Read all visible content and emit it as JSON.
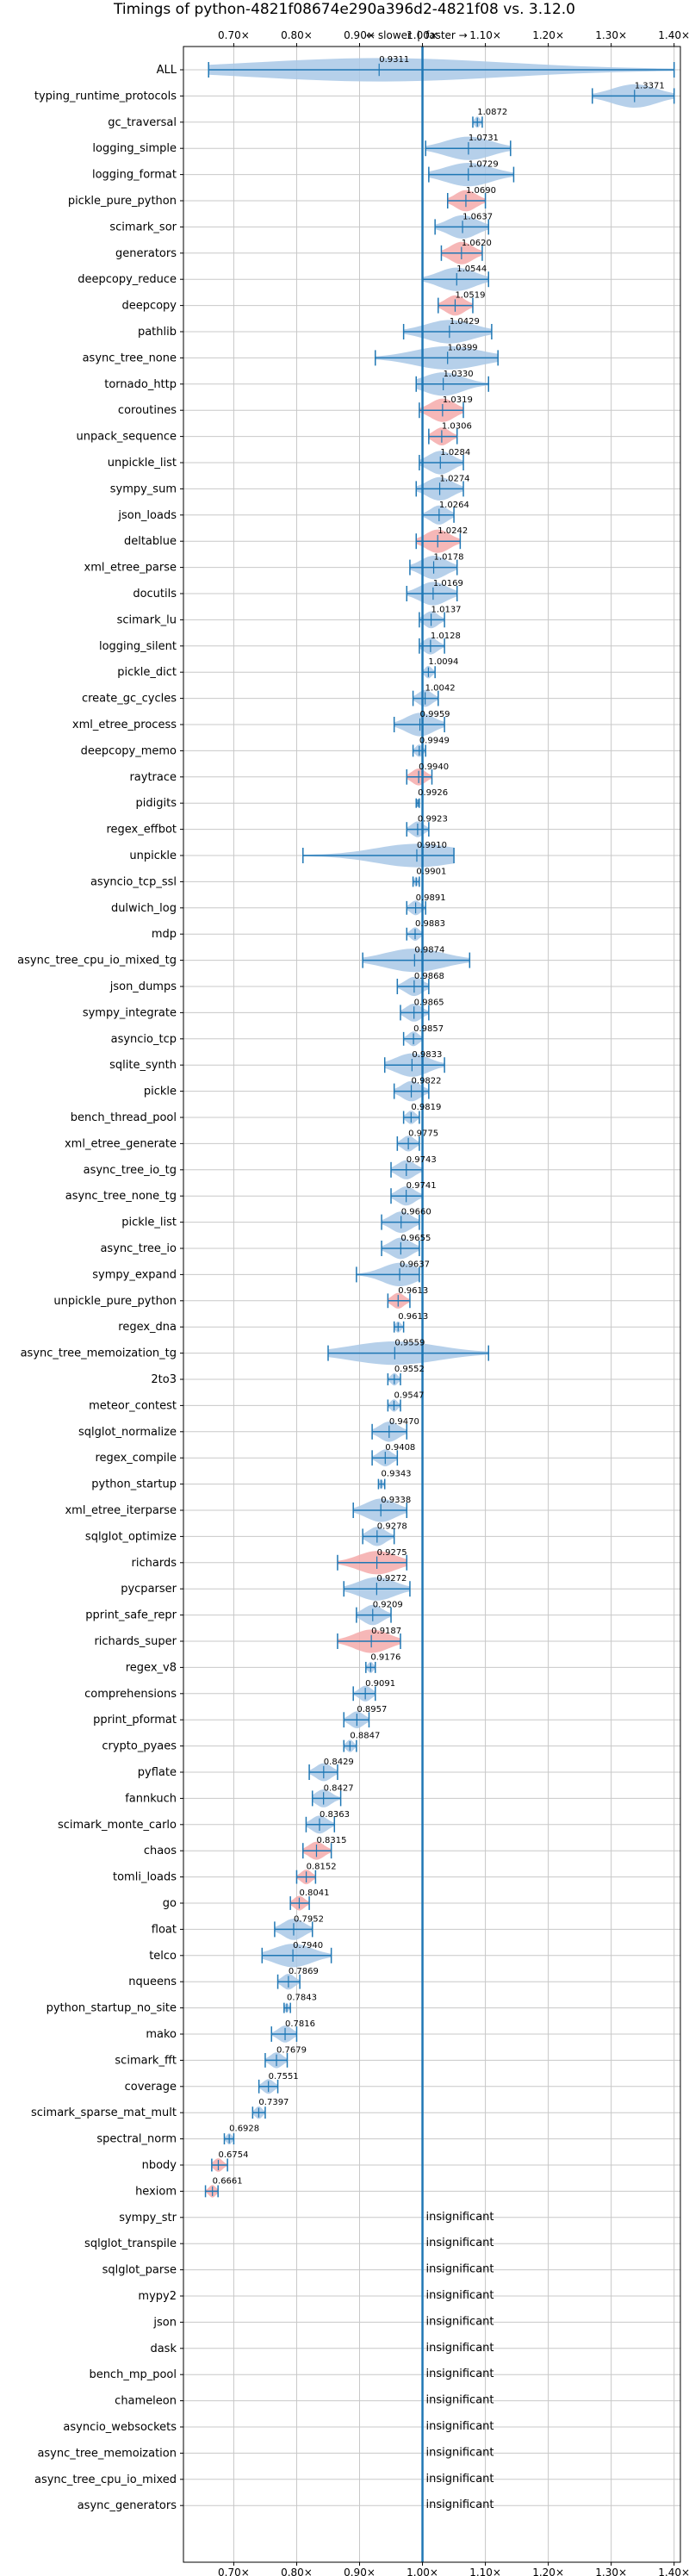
{
  "chart_data": {
    "type": "violin",
    "title": "Timings of python-4821f08674e290a396d2-4821f08 vs. 3.12.0",
    "direction_labels": {
      "slower": "← slower",
      "separator": "|",
      "faster": "faster →"
    },
    "xlim": [
      0.62,
      1.41
    ],
    "ticks": [
      0.7,
      0.8,
      0.9,
      1.0,
      1.1,
      1.2,
      1.3,
      1.4
    ],
    "tick_labels": [
      "0.70×",
      "0.80×",
      "0.90×",
      "1.00×",
      "1.10×",
      "1.20×",
      "1.30×",
      "1.40×"
    ],
    "reference_value": 1.0,
    "grid": true,
    "colors": {
      "normal": "#a9c8e6",
      "highlight": "#f4aaaa",
      "line": "#1f77b4",
      "grid": "#c8c8c8"
    },
    "rows": [
      {
        "name": "ALL",
        "value": 0.9311,
        "label": "0.9311",
        "lo": 0.66,
        "hi": 1.4,
        "hl": false
      },
      {
        "name": "typing_runtime_protocols",
        "value": 1.3371,
        "label": "1.3371",
        "lo": 1.27,
        "hi": 1.4,
        "hl": false
      },
      {
        "name": "gc_traversal",
        "value": 1.0872,
        "label": "1.0872",
        "lo": 1.08,
        "hi": 1.095,
        "hl": false
      },
      {
        "name": "logging_simple",
        "value": 1.0731,
        "label": "1.0731",
        "lo": 1.005,
        "hi": 1.14,
        "hl": false
      },
      {
        "name": "logging_format",
        "value": 1.0729,
        "label": "1.0729",
        "lo": 1.01,
        "hi": 1.145,
        "hl": false
      },
      {
        "name": "pickle_pure_python",
        "value": 1.069,
        "label": "1.0690",
        "lo": 1.04,
        "hi": 1.1,
        "hl": true
      },
      {
        "name": "scimark_sor",
        "value": 1.0637,
        "label": "1.0637",
        "lo": 1.02,
        "hi": 1.105,
        "hl": false
      },
      {
        "name": "generators",
        "value": 1.062,
        "label": "1.0620",
        "lo": 1.03,
        "hi": 1.095,
        "hl": true
      },
      {
        "name": "deepcopy_reduce",
        "value": 1.0544,
        "label": "1.0544",
        "lo": 1.0,
        "hi": 1.105,
        "hl": false
      },
      {
        "name": "deepcopy",
        "value": 1.0519,
        "label": "1.0519",
        "lo": 1.025,
        "hi": 1.08,
        "hl": true
      },
      {
        "name": "pathlib",
        "value": 1.0429,
        "label": "1.0429",
        "lo": 0.97,
        "hi": 1.11,
        "hl": false
      },
      {
        "name": "async_tree_none",
        "value": 1.0399,
        "label": "1.0399",
        "lo": 0.925,
        "hi": 1.12,
        "hl": false
      },
      {
        "name": "tornado_http",
        "value": 1.033,
        "label": "1.0330",
        "lo": 0.99,
        "hi": 1.105,
        "hl": false
      },
      {
        "name": "coroutines",
        "value": 1.0319,
        "label": "1.0319",
        "lo": 0.995,
        "hi": 1.065,
        "hl": true
      },
      {
        "name": "unpack_sequence",
        "value": 1.0306,
        "label": "1.0306",
        "lo": 1.01,
        "hi": 1.055,
        "hl": true
      },
      {
        "name": "unpickle_list",
        "value": 1.0284,
        "label": "1.0284",
        "lo": 0.995,
        "hi": 1.065,
        "hl": false
      },
      {
        "name": "sympy_sum",
        "value": 1.0274,
        "label": "1.0274",
        "lo": 0.99,
        "hi": 1.065,
        "hl": false
      },
      {
        "name": "json_loads",
        "value": 1.0264,
        "label": "1.0264",
        "lo": 1.0,
        "hi": 1.05,
        "hl": false
      },
      {
        "name": "deltablue",
        "value": 1.0242,
        "label": "1.0242",
        "lo": 0.99,
        "hi": 1.06,
        "hl": true
      },
      {
        "name": "xml_etree_parse",
        "value": 1.0178,
        "label": "1.0178",
        "lo": 0.98,
        "hi": 1.055,
        "hl": false
      },
      {
        "name": "docutils",
        "value": 1.0169,
        "label": "1.0169",
        "lo": 0.975,
        "hi": 1.055,
        "hl": false
      },
      {
        "name": "scimark_lu",
        "value": 1.0137,
        "label": "1.0137",
        "lo": 0.995,
        "hi": 1.035,
        "hl": false
      },
      {
        "name": "logging_silent",
        "value": 1.0128,
        "label": "1.0128",
        "lo": 0.995,
        "hi": 1.035,
        "hl": false
      },
      {
        "name": "pickle_dict",
        "value": 1.0094,
        "label": "1.0094",
        "lo": 1.0,
        "hi": 1.02,
        "hl": false
      },
      {
        "name": "create_gc_cycles",
        "value": 1.0042,
        "label": "1.0042",
        "lo": 0.985,
        "hi": 1.025,
        "hl": false
      },
      {
        "name": "xml_etree_process",
        "value": 0.9959,
        "label": "0.9959",
        "lo": 0.955,
        "hi": 1.035,
        "hl": false
      },
      {
        "name": "deepcopy_memo",
        "value": 0.9949,
        "label": "0.9949",
        "lo": 0.985,
        "hi": 1.005,
        "hl": false
      },
      {
        "name": "raytrace",
        "value": 0.994,
        "label": "0.9940",
        "lo": 0.975,
        "hi": 1.015,
        "hl": true
      },
      {
        "name": "pidigits",
        "value": 0.9926,
        "label": "0.9926",
        "lo": 0.99,
        "hi": 0.995,
        "hl": false
      },
      {
        "name": "regex_effbot",
        "value": 0.9923,
        "label": "0.9923",
        "lo": 0.975,
        "hi": 1.01,
        "hl": false
      },
      {
        "name": "unpickle",
        "value": 0.991,
        "label": "0.9910",
        "lo": 0.81,
        "hi": 1.05,
        "hl": false
      },
      {
        "name": "asyncio_tcp_ssl",
        "value": 0.9901,
        "label": "0.9901",
        "lo": 0.985,
        "hi": 0.995,
        "hl": false
      },
      {
        "name": "dulwich_log",
        "value": 0.9891,
        "label": "0.9891",
        "lo": 0.975,
        "hi": 1.005,
        "hl": false
      },
      {
        "name": "mdp",
        "value": 0.9883,
        "label": "0.9883",
        "lo": 0.975,
        "hi": 1.0,
        "hl": false
      },
      {
        "name": "async_tree_cpu_io_mixed_tg",
        "value": 0.9874,
        "label": "0.9874",
        "lo": 0.905,
        "hi": 1.075,
        "hl": false
      },
      {
        "name": "json_dumps",
        "value": 0.9868,
        "label": "0.9868",
        "lo": 0.96,
        "hi": 1.01,
        "hl": false
      },
      {
        "name": "sympy_integrate",
        "value": 0.9865,
        "label": "0.9865",
        "lo": 0.965,
        "hi": 1.01,
        "hl": false
      },
      {
        "name": "asyncio_tcp",
        "value": 0.9857,
        "label": "0.9857",
        "lo": 0.97,
        "hi": 1.0,
        "hl": false
      },
      {
        "name": "sqlite_synth",
        "value": 0.9833,
        "label": "0.9833",
        "lo": 0.94,
        "hi": 1.035,
        "hl": false
      },
      {
        "name": "pickle",
        "value": 0.9822,
        "label": "0.9822",
        "lo": 0.955,
        "hi": 1.01,
        "hl": false
      },
      {
        "name": "bench_thread_pool",
        "value": 0.9819,
        "label": "0.9819",
        "lo": 0.97,
        "hi": 0.995,
        "hl": false
      },
      {
        "name": "xml_etree_generate",
        "value": 0.9775,
        "label": "0.9775",
        "lo": 0.96,
        "hi": 0.995,
        "hl": false
      },
      {
        "name": "async_tree_io_tg",
        "value": 0.9743,
        "label": "0.9743",
        "lo": 0.95,
        "hi": 1.0,
        "hl": false
      },
      {
        "name": "async_tree_none_tg",
        "value": 0.9741,
        "label": "0.9741",
        "lo": 0.95,
        "hi": 1.0,
        "hl": false
      },
      {
        "name": "pickle_list",
        "value": 0.966,
        "label": "0.9660",
        "lo": 0.935,
        "hi": 0.995,
        "hl": false
      },
      {
        "name": "async_tree_io",
        "value": 0.9655,
        "label": "0.9655",
        "lo": 0.935,
        "hi": 0.995,
        "hl": false
      },
      {
        "name": "sympy_expand",
        "value": 0.9637,
        "label": "0.9637",
        "lo": 0.895,
        "hi": 0.995,
        "hl": false
      },
      {
        "name": "unpickle_pure_python",
        "value": 0.9613,
        "label": "0.9613",
        "lo": 0.945,
        "hi": 0.98,
        "hl": true
      },
      {
        "name": "regex_dna",
        "value": 0.9613,
        "label": "0.9613",
        "lo": 0.955,
        "hi": 0.97,
        "hl": false
      },
      {
        "name": "async_tree_memoization_tg",
        "value": 0.9559,
        "label": "0.9559",
        "lo": 0.85,
        "hi": 1.105,
        "hl": false
      },
      {
        "name": "2to3",
        "value": 0.9552,
        "label": "0.9552",
        "lo": 0.945,
        "hi": 0.965,
        "hl": false
      },
      {
        "name": "meteor_contest",
        "value": 0.9547,
        "label": "0.9547",
        "lo": 0.945,
        "hi": 0.965,
        "hl": false
      },
      {
        "name": "sqlglot_normalize",
        "value": 0.947,
        "label": "0.9470",
        "lo": 0.92,
        "hi": 0.975,
        "hl": false
      },
      {
        "name": "regex_compile",
        "value": 0.9408,
        "label": "0.9408",
        "lo": 0.92,
        "hi": 0.96,
        "hl": false
      },
      {
        "name": "python_startup",
        "value": 0.9343,
        "label": "0.9343",
        "lo": 0.93,
        "hi": 0.94,
        "hl": false
      },
      {
        "name": "xml_etree_iterparse",
        "value": 0.9338,
        "label": "0.9338",
        "lo": 0.89,
        "hi": 0.975,
        "hl": false
      },
      {
        "name": "sqlglot_optimize",
        "value": 0.9278,
        "label": "0.9278",
        "lo": 0.905,
        "hi": 0.955,
        "hl": false
      },
      {
        "name": "richards",
        "value": 0.9275,
        "label": "0.9275",
        "lo": 0.865,
        "hi": 0.975,
        "hl": true
      },
      {
        "name": "pycparser",
        "value": 0.9272,
        "label": "0.9272",
        "lo": 0.875,
        "hi": 0.98,
        "hl": false
      },
      {
        "name": "pprint_safe_repr",
        "value": 0.9209,
        "label": "0.9209",
        "lo": 0.895,
        "hi": 0.95,
        "hl": false
      },
      {
        "name": "richards_super",
        "value": 0.9187,
        "label": "0.9187",
        "lo": 0.865,
        "hi": 0.965,
        "hl": true
      },
      {
        "name": "regex_v8",
        "value": 0.9176,
        "label": "0.9176",
        "lo": 0.91,
        "hi": 0.925,
        "hl": false
      },
      {
        "name": "comprehensions",
        "value": 0.9091,
        "label": "0.9091",
        "lo": 0.89,
        "hi": 0.925,
        "hl": false
      },
      {
        "name": "pprint_pformat",
        "value": 0.8957,
        "label": "0.8957",
        "lo": 0.875,
        "hi": 0.915,
        "hl": false
      },
      {
        "name": "crypto_pyaes",
        "value": 0.8847,
        "label": "0.8847",
        "lo": 0.875,
        "hi": 0.895,
        "hl": false
      },
      {
        "name": "pyflate",
        "value": 0.8429,
        "label": "0.8429",
        "lo": 0.82,
        "hi": 0.865,
        "hl": false
      },
      {
        "name": "fannkuch",
        "value": 0.8427,
        "label": "0.8427",
        "lo": 0.825,
        "hi": 0.87,
        "hl": false
      },
      {
        "name": "scimark_monte_carlo",
        "value": 0.8363,
        "label": "0.8363",
        "lo": 0.815,
        "hi": 0.86,
        "hl": false
      },
      {
        "name": "chaos",
        "value": 0.8315,
        "label": "0.8315",
        "lo": 0.81,
        "hi": 0.855,
        "hl": true
      },
      {
        "name": "tomli_loads",
        "value": 0.8152,
        "label": "0.8152",
        "lo": 0.8,
        "hi": 0.83,
        "hl": true
      },
      {
        "name": "go",
        "value": 0.8041,
        "label": "0.8041",
        "lo": 0.79,
        "hi": 0.82,
        "hl": true
      },
      {
        "name": "float",
        "value": 0.7952,
        "label": "0.7952",
        "lo": 0.765,
        "hi": 0.825,
        "hl": false
      },
      {
        "name": "telco",
        "value": 0.794,
        "label": "0.7940",
        "lo": 0.745,
        "hi": 0.855,
        "hl": false
      },
      {
        "name": "nqueens",
        "value": 0.7869,
        "label": "0.7869",
        "lo": 0.77,
        "hi": 0.805,
        "hl": false
      },
      {
        "name": "python_startup_no_site",
        "value": 0.7843,
        "label": "0.7843",
        "lo": 0.78,
        "hi": 0.79,
        "hl": false
      },
      {
        "name": "mako",
        "value": 0.7816,
        "label": "0.7816",
        "lo": 0.76,
        "hi": 0.8,
        "hl": false
      },
      {
        "name": "scimark_fft",
        "value": 0.7679,
        "label": "0.7679",
        "lo": 0.75,
        "hi": 0.785,
        "hl": false
      },
      {
        "name": "coverage",
        "value": 0.7551,
        "label": "0.7551",
        "lo": 0.74,
        "hi": 0.77,
        "hl": false
      },
      {
        "name": "scimark_sparse_mat_mult",
        "value": 0.7397,
        "label": "0.7397",
        "lo": 0.73,
        "hi": 0.75,
        "hl": false
      },
      {
        "name": "spectral_norm",
        "value": 0.6928,
        "label": "0.6928",
        "lo": 0.685,
        "hi": 0.7,
        "hl": false
      },
      {
        "name": "nbody",
        "value": 0.6754,
        "label": "0.6754",
        "lo": 0.665,
        "hi": 0.69,
        "hl": true
      },
      {
        "name": "hexiom",
        "value": 0.6661,
        "label": "0.6661",
        "lo": 0.655,
        "hi": 0.675,
        "hl": true
      },
      {
        "name": "sympy_str",
        "value": null,
        "label": "insignificant",
        "lo": null,
        "hi": null,
        "hl": false
      },
      {
        "name": "sqlglot_transpile",
        "value": null,
        "label": "insignificant",
        "lo": null,
        "hi": null,
        "hl": false
      },
      {
        "name": "sqlglot_parse",
        "value": null,
        "label": "insignificant",
        "lo": null,
        "hi": null,
        "hl": false
      },
      {
        "name": "mypy2",
        "value": null,
        "label": "insignificant",
        "lo": null,
        "hi": null,
        "hl": false
      },
      {
        "name": "json",
        "value": null,
        "label": "insignificant",
        "lo": null,
        "hi": null,
        "hl": false
      },
      {
        "name": "dask",
        "value": null,
        "label": "insignificant",
        "lo": null,
        "hi": null,
        "hl": false
      },
      {
        "name": "bench_mp_pool",
        "value": null,
        "label": "insignificant",
        "lo": null,
        "hi": null,
        "hl": false
      },
      {
        "name": "chameleon",
        "value": null,
        "label": "insignificant",
        "lo": null,
        "hi": null,
        "hl": false
      },
      {
        "name": "asyncio_websockets",
        "value": null,
        "label": "insignificant",
        "lo": null,
        "hi": null,
        "hl": false
      },
      {
        "name": "async_tree_memoization",
        "value": null,
        "label": "insignificant",
        "lo": null,
        "hi": null,
        "hl": false
      },
      {
        "name": "async_tree_cpu_io_mixed",
        "value": null,
        "label": "insignificant",
        "lo": null,
        "hi": null,
        "hl": false
      },
      {
        "name": "async_generators",
        "value": null,
        "label": "insignificant",
        "lo": null,
        "hi": null,
        "hl": false
      }
    ]
  }
}
